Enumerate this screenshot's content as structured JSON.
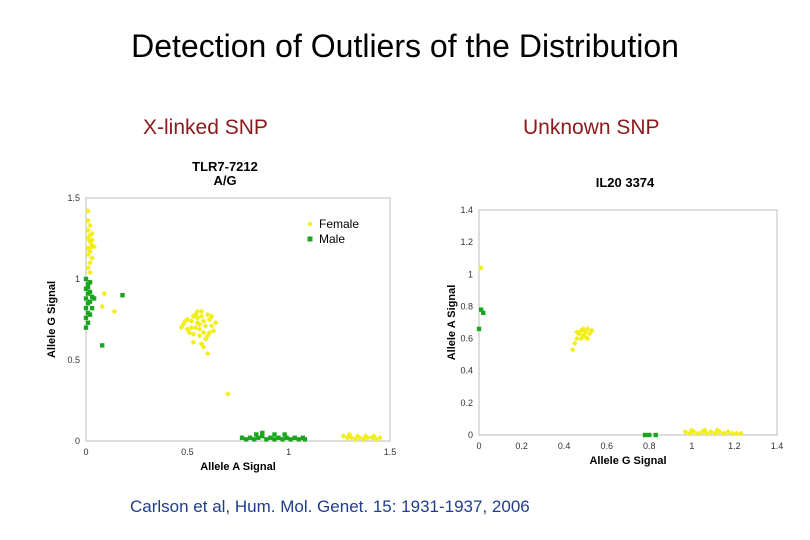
{
  "slide": {
    "title": "Detection of Outliers of the Distribution",
    "left_label": "X-linked SNP",
    "right_label": "Unknown SNP",
    "citation": "Carlson et al, Hum. Mol. Genet. 15: 1931-1937, 2006"
  },
  "colors": {
    "female": "#f2ee1a",
    "male": "#1aa51f"
  },
  "chart_data": [
    {
      "type": "scatter",
      "title": "TLR7-7212",
      "subtitle": "A/G",
      "xlabel": "Allele A Signal",
      "ylabel": "Allele G Signal",
      "xlim": [
        0,
        1.5
      ],
      "ylim": [
        0,
        1.5
      ],
      "xticks": [
        "0",
        "0.5",
        "1",
        "1.5"
      ],
      "yticks": [
        "0",
        "0.5",
        "1",
        "1.5"
      ],
      "grid": false,
      "legend": "top-right",
      "series": [
        {
          "name": "Female",
          "color": "#f2ee1a",
          "marker": "diamond",
          "points": [
            [
              0.01,
              1.42
            ],
            [
              0.01,
              1.36
            ],
            [
              0.02,
              1.33
            ],
            [
              0.01,
              1.3
            ],
            [
              0.02,
              1.27
            ],
            [
              0.01,
              1.25
            ],
            [
              0.02,
              1.23
            ],
            [
              0.03,
              1.21
            ],
            [
              0.01,
              1.19
            ],
            [
              0.02,
              1.17
            ],
            [
              0.01,
              1.15
            ],
            [
              0.03,
              1.13
            ],
            [
              0.02,
              1.1
            ],
            [
              0.01,
              1.07
            ],
            [
              0.02,
              1.04
            ],
            [
              0.03,
              1.24
            ],
            [
              0.04,
              1.2
            ],
            [
              0.02,
              1.19
            ],
            [
              0.03,
              1.28
            ],
            [
              0.08,
              0.83
            ],
            [
              0.09,
              0.91
            ],
            [
              0.14,
              0.8
            ],
            [
              0.48,
              0.72
            ],
            [
              0.5,
              0.75
            ],
            [
              0.52,
              0.7
            ],
            [
              0.54,
              0.78
            ],
            [
              0.55,
              0.73
            ],
            [
              0.56,
              0.69
            ],
            [
              0.57,
              0.77
            ],
            [
              0.58,
              0.74
            ],
            [
              0.59,
              0.71
            ],
            [
              0.6,
              0.78
            ],
            [
              0.61,
              0.75
            ],
            [
              0.62,
              0.71
            ],
            [
              0.63,
              0.68
            ],
            [
              0.5,
              0.69
            ],
            [
              0.51,
              0.67
            ],
            [
              0.53,
              0.66
            ],
            [
              0.55,
              0.76
            ],
            [
              0.57,
              0.8
            ],
            [
              0.58,
              0.67
            ],
            [
              0.6,
              0.65
            ],
            [
              0.56,
              0.65
            ],
            [
              0.54,
              0.7
            ],
            [
              0.52,
              0.74
            ],
            [
              0.59,
              0.63
            ],
            [
              0.53,
              0.61
            ],
            [
              0.58,
              0.58
            ],
            [
              0.6,
              0.54
            ],
            [
              0.49,
              0.74
            ],
            [
              0.62,
              0.77
            ],
            [
              0.64,
              0.73
            ],
            [
              0.47,
              0.7
            ],
            [
              0.56,
              0.72
            ],
            [
              0.61,
              0.67
            ],
            [
              0.55,
              0.8
            ],
            [
              0.53,
              0.77
            ],
            [
              0.57,
              0.6
            ],
            [
              0.7,
              0.29
            ],
            [
              1.27,
              0.03
            ],
            [
              1.29,
              0.02
            ],
            [
              1.31,
              0.02
            ],
            [
              1.33,
              0.01
            ],
            [
              1.35,
              0.02
            ],
            [
              1.37,
              0.01
            ],
            [
              1.39,
              0.02
            ],
            [
              1.41,
              0.02
            ],
            [
              1.43,
              0.01
            ],
            [
              1.45,
              0.02
            ],
            [
              1.3,
              0.04
            ],
            [
              1.34,
              0.03
            ],
            [
              1.38,
              0.03
            ],
            [
              1.42,
              0.03
            ]
          ]
        },
        {
          "name": "Male",
          "color": "#1aa51f",
          "marker": "square",
          "points": [
            [
              0.0,
              1.0
            ],
            [
              0.01,
              0.97
            ],
            [
              0.0,
              0.94
            ],
            [
              0.01,
              0.91
            ],
            [
              0.0,
              0.88
            ],
            [
              0.01,
              0.85
            ],
            [
              0.0,
              0.82
            ],
            [
              0.01,
              0.79
            ],
            [
              0.0,
              0.76
            ],
            [
              0.01,
              0.73
            ],
            [
              0.02,
              0.86
            ],
            [
              0.02,
              0.92
            ],
            [
              0.03,
              0.89
            ],
            [
              0.03,
              0.82
            ],
            [
              0.02,
              0.78
            ],
            [
              0.0,
              0.7
            ],
            [
              0.02,
              0.98
            ],
            [
              0.04,
              0.88
            ],
            [
              0.01,
              0.95
            ],
            [
              0.08,
              0.59
            ],
            [
              0.18,
              0.9
            ],
            [
              0.77,
              0.02
            ],
            [
              0.79,
              0.01
            ],
            [
              0.81,
              0.02
            ],
            [
              0.83,
              0.01
            ],
            [
              0.85,
              0.02
            ],
            [
              0.87,
              0.03
            ],
            [
              0.89,
              0.01
            ],
            [
              0.91,
              0.02
            ],
            [
              0.93,
              0.01
            ],
            [
              0.95,
              0.02
            ],
            [
              0.97,
              0.01
            ],
            [
              0.99,
              0.02
            ],
            [
              1.01,
              0.01
            ],
            [
              1.03,
              0.02
            ],
            [
              1.05,
              0.01
            ],
            [
              1.07,
              0.02
            ],
            [
              0.87,
              0.05
            ],
            [
              0.93,
              0.04
            ],
            [
              0.98,
              0.04
            ],
            [
              1.08,
              0.01
            ],
            [
              0.84,
              0.04
            ]
          ]
        }
      ]
    },
    {
      "type": "scatter",
      "title": "IL20 3374",
      "xlabel": "Allele G Signal",
      "ylabel": "Allele A Signal",
      "xlim": [
        0,
        1.4
      ],
      "ylim": [
        0,
        1.4
      ],
      "xticks": [
        "0",
        "0.2",
        "0.4",
        "0.6",
        "0.8",
        "1",
        "1.2",
        "1.4"
      ],
      "yticks": [
        "0",
        "0.2",
        "0.4",
        "0.6",
        "0.8",
        "1",
        "1.2",
        "1.4"
      ],
      "grid": false,
      "series": [
        {
          "color": "#f2ee1a",
          "marker": "diamond",
          "points": [
            [
              0.01,
              1.04
            ],
            [
              0.44,
              0.53
            ],
            [
              0.45,
              0.57
            ],
            [
              0.46,
              0.6
            ],
            [
              0.47,
              0.63
            ],
            [
              0.48,
              0.65
            ],
            [
              0.49,
              0.62
            ],
            [
              0.5,
              0.64
            ],
            [
              0.51,
              0.66
            ],
            [
              0.52,
              0.63
            ],
            [
              0.53,
              0.65
            ],
            [
              0.48,
              0.6
            ],
            [
              0.5,
              0.61
            ],
            [
              0.46,
              0.64
            ],
            [
              0.49,
              0.66
            ],
            [
              0.51,
              0.6
            ],
            [
              0.97,
              0.02
            ],
            [
              0.99,
              0.01
            ],
            [
              1.01,
              0.02
            ],
            [
              1.03,
              0.01
            ],
            [
              1.05,
              0.02
            ],
            [
              1.07,
              0.01
            ],
            [
              1.09,
              0.02
            ],
            [
              1.11,
              0.01
            ],
            [
              1.13,
              0.02
            ],
            [
              1.15,
              0.01
            ],
            [
              1.17,
              0.02
            ],
            [
              1.19,
              0.01
            ],
            [
              1.21,
              0.01
            ],
            [
              1.23,
              0.01
            ],
            [
              1.0,
              0.03
            ],
            [
              1.06,
              0.03
            ],
            [
              1.12,
              0.03
            ]
          ]
        },
        {
          "color": "#1aa51f",
          "marker": "square",
          "points": [
            [
              0.01,
              0.78
            ],
            [
              0.02,
              0.76
            ],
            [
              0.0,
              0.66
            ],
            [
              0.78,
              0.0
            ],
            [
              0.8,
              0.0
            ],
            [
              0.83,
              0.0
            ]
          ]
        }
      ]
    }
  ]
}
